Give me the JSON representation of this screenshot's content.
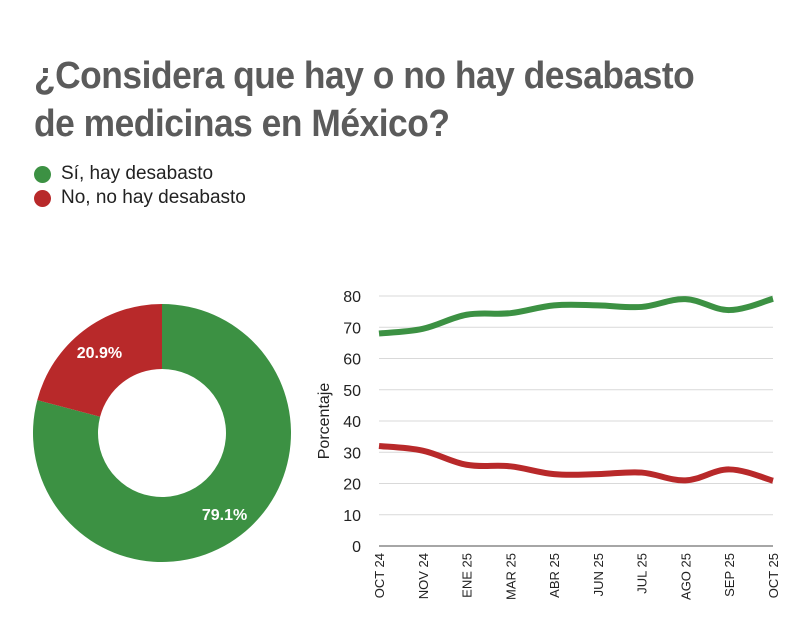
{
  "title": "¿Considera que hay o no hay desabasto de medicinas en México?",
  "legend": [
    {
      "label": "Sí, hay desabasto",
      "color": "#3c9143"
    },
    {
      "label": "No, no hay desabasto",
      "color": "#b8292a"
    }
  ],
  "chart_data": [
    {
      "type": "pie",
      "variant": "donut",
      "title": "",
      "slices": [
        {
          "label": "Sí, hay desabasto",
          "value": 79.1,
          "display": "79.1%",
          "color": "#3c9143"
        },
        {
          "label": "No, no hay desabasto",
          "value": 20.9,
          "display": "20.9%",
          "color": "#b8292a"
        }
      ]
    },
    {
      "type": "line",
      "title": "",
      "xlabel": "",
      "ylabel": "Porcentaje",
      "ylim": [
        0,
        80
      ],
      "yticks": [
        0,
        10,
        20,
        30,
        40,
        50,
        60,
        70,
        80
      ],
      "grid": true,
      "categories": [
        "OCT 24",
        "NOV 24",
        "ENE 25",
        "MAR 25",
        "ABR 25",
        "JUN 25",
        "JUL 25",
        "AGO 25",
        "SEP 25",
        "OCT 25"
      ],
      "series": [
        {
          "name": "Sí, hay desabasto",
          "color": "#3c9143",
          "values": [
            68,
            69.5,
            74,
            74.5,
            77,
            77,
            76.5,
            79,
            75.5,
            79.1
          ]
        },
        {
          "name": "No, no hay desabasto",
          "color": "#b8292a",
          "values": [
            32,
            30.5,
            26,
            25.5,
            23,
            23,
            23.5,
            21,
            24.5,
            20.9
          ]
        }
      ]
    }
  ]
}
